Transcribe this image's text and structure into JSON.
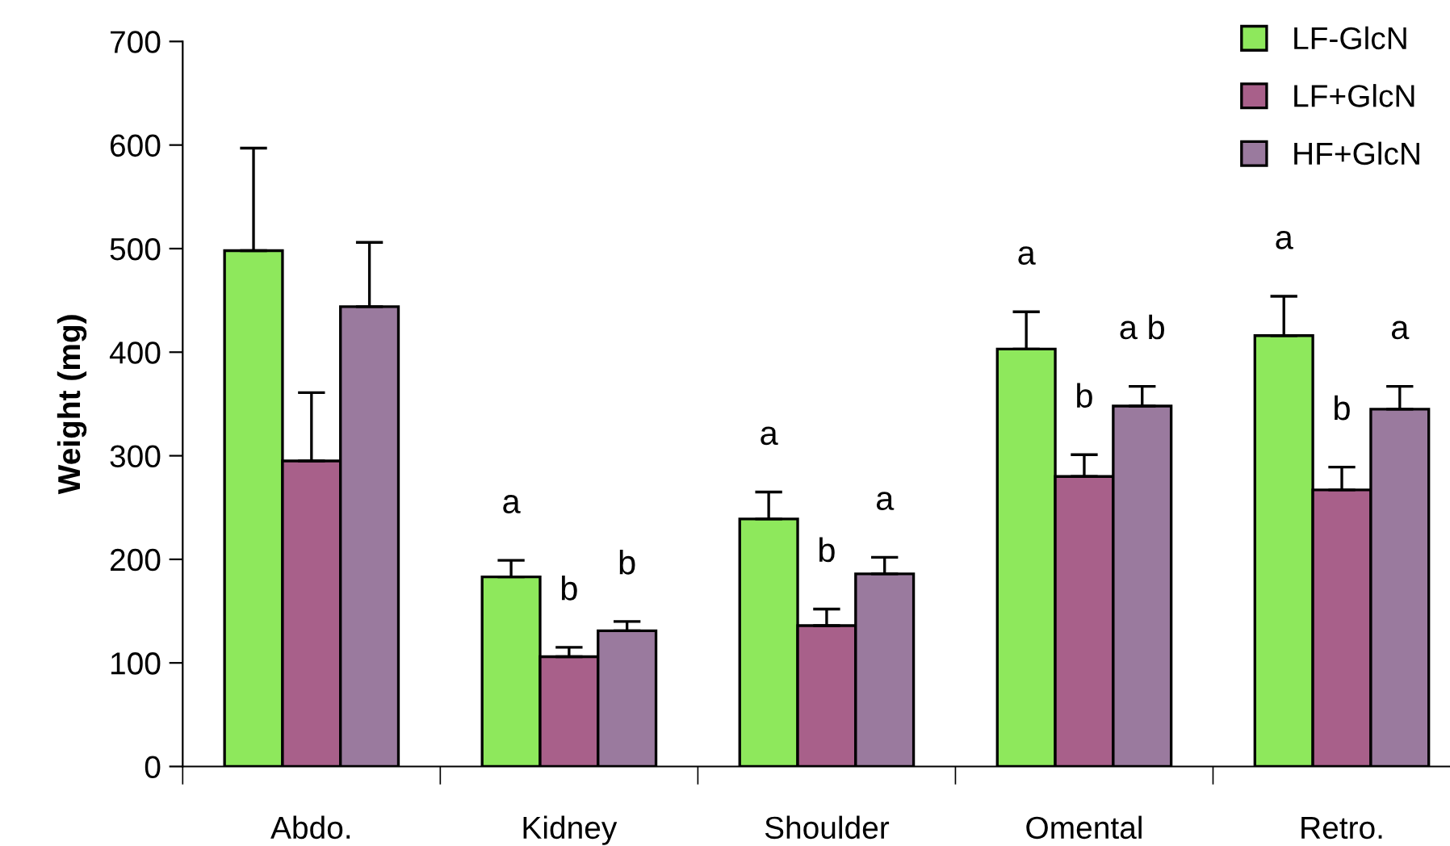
{
  "chart_data": {
    "type": "bar",
    "ylabel": "Weight (mg)",
    "categories": [
      "Abdo.",
      "Kidney",
      "Shoulder",
      "Omental",
      "Retro."
    ],
    "series": [
      {
        "name": "LF-GlcN",
        "color": "#8ee85c",
        "values": [
          498,
          183,
          239,
          403,
          416
        ],
        "errors": [
          [
            498,
            597
          ],
          [
            183,
            199
          ],
          [
            239,
            265
          ],
          [
            403,
            439
          ],
          [
            416,
            454
          ]
        ],
        "value_labels": [
          null,
          "a",
          "a",
          "a",
          "a"
        ]
      },
      {
        "name": "LF+GlcN",
        "color": "#a8608a",
        "values": [
          295,
          106,
          136,
          280,
          267
        ],
        "errors": [
          [
            295,
            361
          ],
          [
            106,
            115
          ],
          [
            136,
            152
          ],
          [
            280,
            301
          ],
          [
            267,
            289
          ]
        ],
        "value_labels": [
          null,
          "b",
          "b",
          "b",
          "b"
        ]
      },
      {
        "name": "HF+GlcN",
        "color": "#9a7a9e",
        "values": [
          444,
          131,
          186,
          348,
          345
        ],
        "errors": [
          [
            444,
            506
          ],
          [
            131,
            140
          ],
          [
            186,
            202
          ],
          [
            348,
            367
          ],
          [
            345,
            367
          ]
        ],
        "value_labels": [
          null,
          "b",
          "a",
          "a b",
          "a"
        ]
      }
    ],
    "ylim": [
      0,
      700
    ],
    "yticks": [
      0,
      100,
      200,
      300,
      400,
      500,
      600,
      700
    ],
    "grid": false,
    "legend": "top right"
  }
}
